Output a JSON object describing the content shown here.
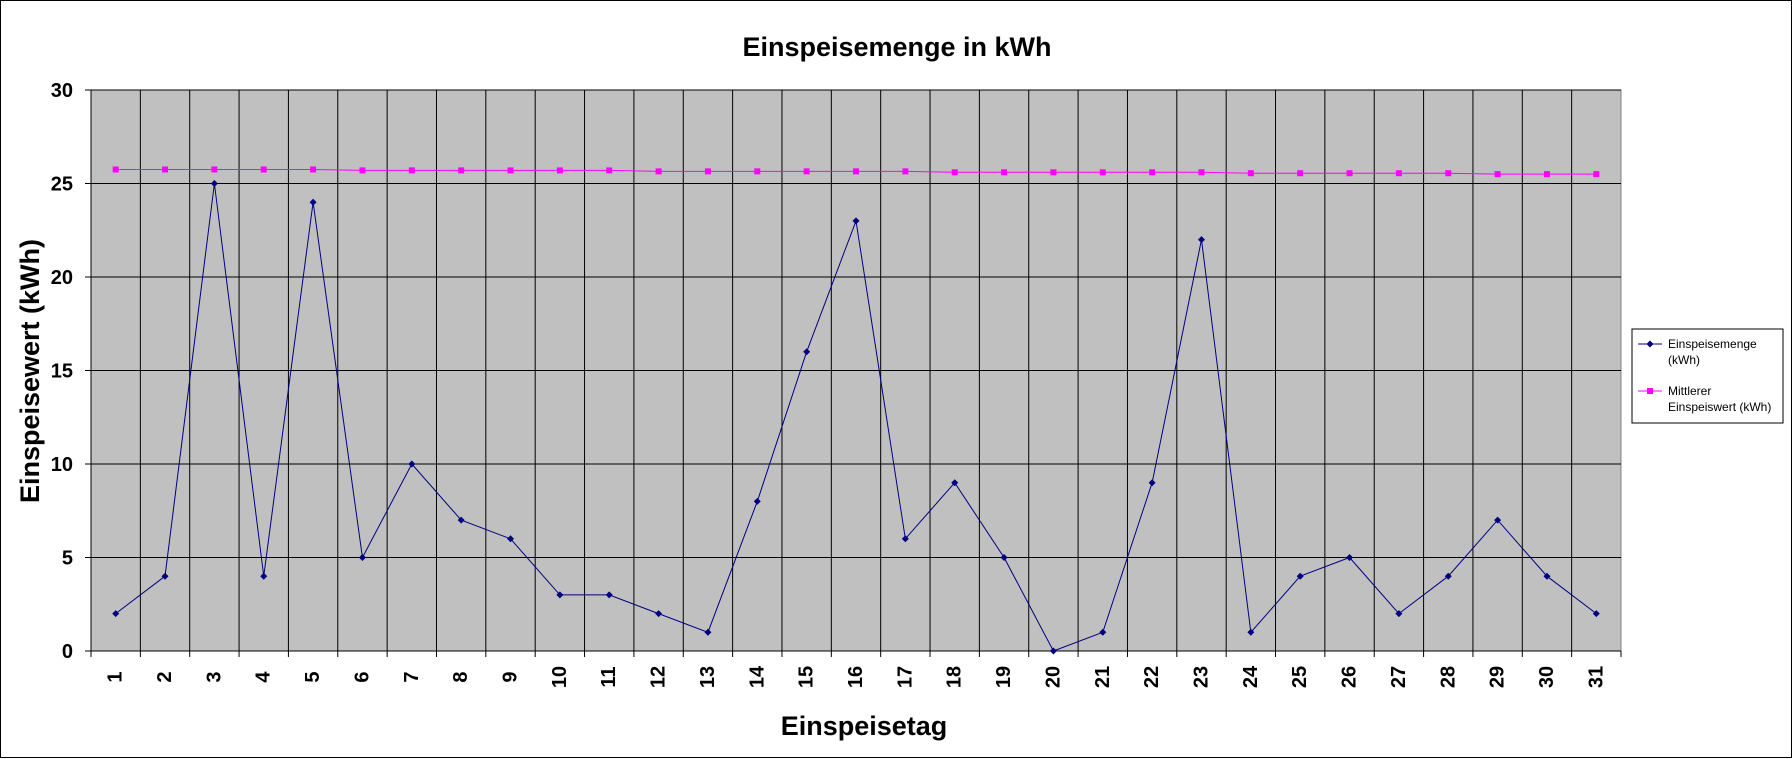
{
  "chart_data": {
    "type": "line",
    "title": "Einspeisemenge in kWh",
    "xlabel": "Einspeisetag",
    "ylabel": "Einspeisewert  (kWh)",
    "x": [
      1,
      2,
      3,
      4,
      5,
      6,
      7,
      8,
      9,
      10,
      11,
      12,
      13,
      14,
      15,
      16,
      17,
      18,
      19,
      20,
      21,
      22,
      23,
      24,
      25,
      26,
      27,
      28,
      29,
      30,
      31
    ],
    "ylim": [
      0,
      30
    ],
    "yticks": [
      0,
      5,
      10,
      15,
      20,
      25,
      30
    ],
    "grid": true,
    "legend_position": "right",
    "series": [
      {
        "name": "Einspeisemenge (kWh)",
        "legend_lines": [
          "Einspeisemenge",
          "(kWh)"
        ],
        "color": "#000080",
        "marker": "diamond",
        "values": [
          2,
          4,
          25,
          4,
          24,
          5,
          10,
          7,
          6,
          3,
          3,
          2,
          1,
          8,
          16,
          23,
          6,
          9,
          5,
          0,
          1,
          9,
          22,
          1,
          4,
          5,
          2,
          4,
          7,
          4,
          2
        ]
      },
      {
        "name": "Mittlerer Einspeiswert (kWh)",
        "legend_lines": [
          "Mittlerer",
          "Einspeiswert (kWh)"
        ],
        "color": "#ff00ff",
        "marker": "square",
        "values": [
          25.75,
          25.75,
          25.75,
          25.75,
          25.75,
          25.7,
          25.7,
          25.7,
          25.7,
          25.7,
          25.7,
          25.65,
          25.65,
          25.65,
          25.65,
          25.65,
          25.65,
          25.6,
          25.6,
          25.6,
          25.6,
          25.6,
          25.6,
          25.55,
          25.55,
          25.55,
          25.55,
          25.55,
          25.5,
          25.5,
          25.5
        ]
      }
    ]
  }
}
